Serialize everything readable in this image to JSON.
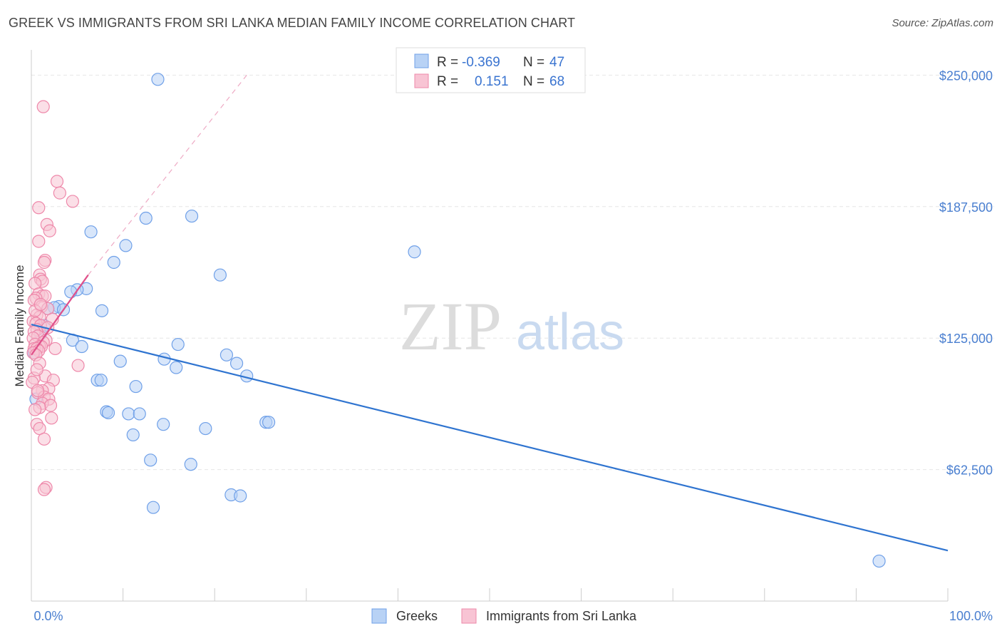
{
  "title": "GREEK VS IMMIGRANTS FROM SRI LANKA MEDIAN FAMILY INCOME CORRELATION CHART",
  "source": "Source: ZipAtlas.com",
  "watermark": {
    "zip": "ZIP",
    "atlas": "atlas"
  },
  "legend_box": [
    {
      "r_label": "R = ",
      "r_value": "-0.369",
      "n_label": "N = ",
      "n_value": "47",
      "color": "#6fa0e8",
      "fill": "#b8d2f5"
    },
    {
      "r_label": "R = ",
      "r_value": "0.151",
      "n_label": "N = ",
      "n_value": "68",
      "color": "#ee88aa",
      "fill": "#f8c4d4"
    }
  ],
  "chart_data": {
    "type": "scatter",
    "ylabel": "Median Family Income",
    "xlim": [
      0,
      100
    ],
    "ylim": [
      0,
      262000
    ],
    "x_tick_labels": [
      "0.0%",
      "100.0%"
    ],
    "y_ticks": [
      {
        "value": 62500,
        "label": "$62,500"
      },
      {
        "value": 125000,
        "label": "$125,000"
      },
      {
        "value": 187500,
        "label": "$187,500"
      },
      {
        "value": 250000,
        "label": "$250,000"
      }
    ],
    "grid": true,
    "legend": "bottom-center",
    "series": [
      {
        "name": "Greeks",
        "color": "#6fa0e8",
        "fill": "#b8d2f5",
        "trend": {
          "x": [
            0,
            100
          ],
          "y": [
            131500,
            24000
          ]
        },
        "points": [
          [
            13.8,
            248000
          ],
          [
            17.5,
            183000
          ],
          [
            12.5,
            182000
          ],
          [
            6.5,
            175500
          ],
          [
            10.3,
            169000
          ],
          [
            41.8,
            166000
          ],
          [
            9.0,
            161000
          ],
          [
            20.6,
            155000
          ],
          [
            6.0,
            148500
          ],
          [
            5.0,
            148000
          ],
          [
            4.3,
            147000
          ],
          [
            3.0,
            140000
          ],
          [
            2.5,
            139500
          ],
          [
            1.8,
            139000
          ],
          [
            3.5,
            138500
          ],
          [
            7.7,
            138000
          ],
          [
            1.4,
            131000
          ],
          [
            4.5,
            124000
          ],
          [
            5.5,
            121000
          ],
          [
            16.0,
            122000
          ],
          [
            21.3,
            117000
          ],
          [
            14.5,
            115000
          ],
          [
            9.7,
            114000
          ],
          [
            22.4,
            113000
          ],
          [
            15.8,
            111000
          ],
          [
            23.5,
            107000
          ],
          [
            7.2,
            105000
          ],
          [
            7.6,
            105000
          ],
          [
            11.4,
            102000
          ],
          [
            0.5,
            96000
          ],
          [
            8.2,
            90000
          ],
          [
            8.4,
            89500
          ],
          [
            10.6,
            89000
          ],
          [
            11.8,
            89000
          ],
          [
            25.6,
            85000
          ],
          [
            25.9,
            85000
          ],
          [
            14.4,
            84000
          ],
          [
            19.0,
            82000
          ],
          [
            11.1,
            79000
          ],
          [
            13.0,
            67000
          ],
          [
            17.4,
            65000
          ],
          [
            21.8,
            50500
          ],
          [
            22.8,
            50000
          ],
          [
            13.3,
            44500
          ],
          [
            92.5,
            19000
          ],
          [
            0.3,
            118000
          ],
          [
            1.0,
            127000
          ]
        ]
      },
      {
        "name": "Immigrants from Sri Lanka",
        "color": "#ee88aa",
        "fill": "#f8c4d4",
        "trend": {
          "x": [
            0,
            6.2
          ],
          "y": [
            117000,
            155000
          ]
        },
        "trend_extension": {
          "x": [
            6.2,
            23.5
          ],
          "y": [
            155000,
            250000
          ]
        },
        "points": [
          [
            1.3,
            235000
          ],
          [
            2.8,
            199500
          ],
          [
            3.1,
            194000
          ],
          [
            4.5,
            190000
          ],
          [
            0.8,
            187000
          ],
          [
            1.7,
            179000
          ],
          [
            2.0,
            176000
          ],
          [
            0.8,
            171000
          ],
          [
            1.5,
            162000
          ],
          [
            1.4,
            161000
          ],
          [
            0.9,
            155000
          ],
          [
            1.0,
            153000
          ],
          [
            1.2,
            152000
          ],
          [
            0.4,
            151000
          ],
          [
            0.8,
            146000
          ],
          [
            1.2,
            145000
          ],
          [
            1.5,
            145000
          ],
          [
            0.5,
            144000
          ],
          [
            0.3,
            143000
          ],
          [
            1.1,
            140000
          ],
          [
            1.8,
            139000
          ],
          [
            0.6,
            136000
          ],
          [
            0.9,
            135000
          ],
          [
            2.3,
            134000
          ],
          [
            0.2,
            133000
          ],
          [
            0.5,
            132000
          ],
          [
            1.0,
            131000
          ],
          [
            0.6,
            129000
          ],
          [
            0.3,
            128000
          ],
          [
            0.7,
            126000
          ],
          [
            0.2,
            125000
          ],
          [
            1.6,
            124000
          ],
          [
            1.3,
            123000
          ],
          [
            0.4,
            122000
          ],
          [
            0.9,
            121000
          ],
          [
            1.1,
            121000
          ],
          [
            0.3,
            120000
          ],
          [
            0.6,
            120000
          ],
          [
            2.6,
            120000
          ],
          [
            0.8,
            119000
          ],
          [
            0.2,
            118000
          ],
          [
            0.5,
            117000
          ],
          [
            0.9,
            113000
          ],
          [
            5.1,
            112000
          ],
          [
            1.5,
            107000
          ],
          [
            0.3,
            106000
          ],
          [
            2.4,
            105000
          ],
          [
            0.1,
            104000
          ],
          [
            1.9,
            101000
          ],
          [
            1.2,
            100000
          ],
          [
            0.7,
            99000
          ],
          [
            1.4,
            97000
          ],
          [
            1.9,
            96000
          ],
          [
            1.2,
            94000
          ],
          [
            2.1,
            93000
          ],
          [
            0.9,
            92000
          ],
          [
            2.2,
            87000
          ],
          [
            0.6,
            84000
          ],
          [
            0.9,
            82000
          ],
          [
            1.4,
            77000
          ],
          [
            1.6,
            54000
          ],
          [
            1.4,
            53000
          ],
          [
            0.4,
            91000
          ],
          [
            0.6,
            110000
          ],
          [
            1.8,
            130000
          ],
          [
            0.4,
            138000
          ],
          [
            1.0,
            141000
          ],
          [
            0.7,
            100000
          ]
        ]
      }
    ]
  }
}
